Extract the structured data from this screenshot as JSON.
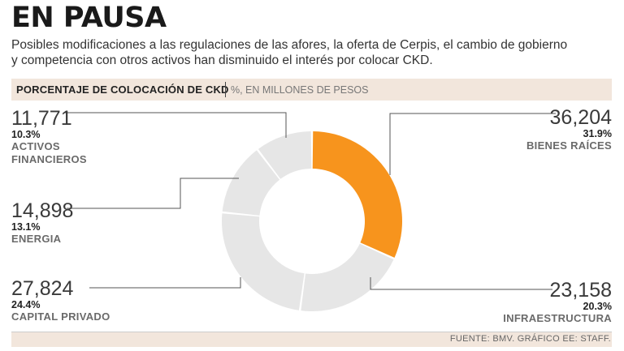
{
  "header": {
    "title": "EN PAUSA",
    "subtitle_line1": "Posibles modificaciones a las regulaciones de las afores, la oferta de Cerpis, el cambio de gobierno",
    "subtitle_line2": "y competencia con otros activos han disminuido el interés por colocar CKD."
  },
  "bar": {
    "title": "PORCENTAJE DE COLOCACIÓN DE CKD",
    "unit": "%, EN MILLONES DE PESOS"
  },
  "colors": {
    "highlight": "#f7941d",
    "base": "#e6e6e6",
    "bar_bg": "#f2e6dc"
  },
  "chart_data": {
    "type": "pie",
    "style": "donut",
    "title": "PORCENTAJE DE COLOCACIÓN DE CKD",
    "unit": "%, EN MILLONES DE PESOS",
    "slices": [
      {
        "key": "bienes",
        "label": "BIENES RAÍCES",
        "value": 36204,
        "value_label": "36,204",
        "percent": 31.9,
        "percent_label": "31.9%",
        "highlight": true
      },
      {
        "key": "infra",
        "label": "INFRAESTRUCTURA",
        "value": 23158,
        "value_label": "23,158",
        "percent": 20.3,
        "percent_label": "20.3%",
        "highlight": false
      },
      {
        "key": "capital",
        "label": "CAPITAL PRIVADO",
        "value": 27824,
        "value_label": "27,824",
        "percent": 24.4,
        "percent_label": "24.4%",
        "highlight": false
      },
      {
        "key": "energia",
        "label": "ENERGIA",
        "value": 14898,
        "value_label": "14,898",
        "percent": 13.1,
        "percent_label": "13.1%",
        "highlight": false
      },
      {
        "key": "activos",
        "label_line1": "ACTIVOS",
        "label_line2": "FINANCIEROS",
        "value": 11771,
        "value_label": "11,771",
        "percent": 10.3,
        "percent_label": "10.3%",
        "highlight": false
      }
    ]
  },
  "footer": {
    "source": "FUENTE: BMV. GRÁFICO EE: STAFF."
  }
}
